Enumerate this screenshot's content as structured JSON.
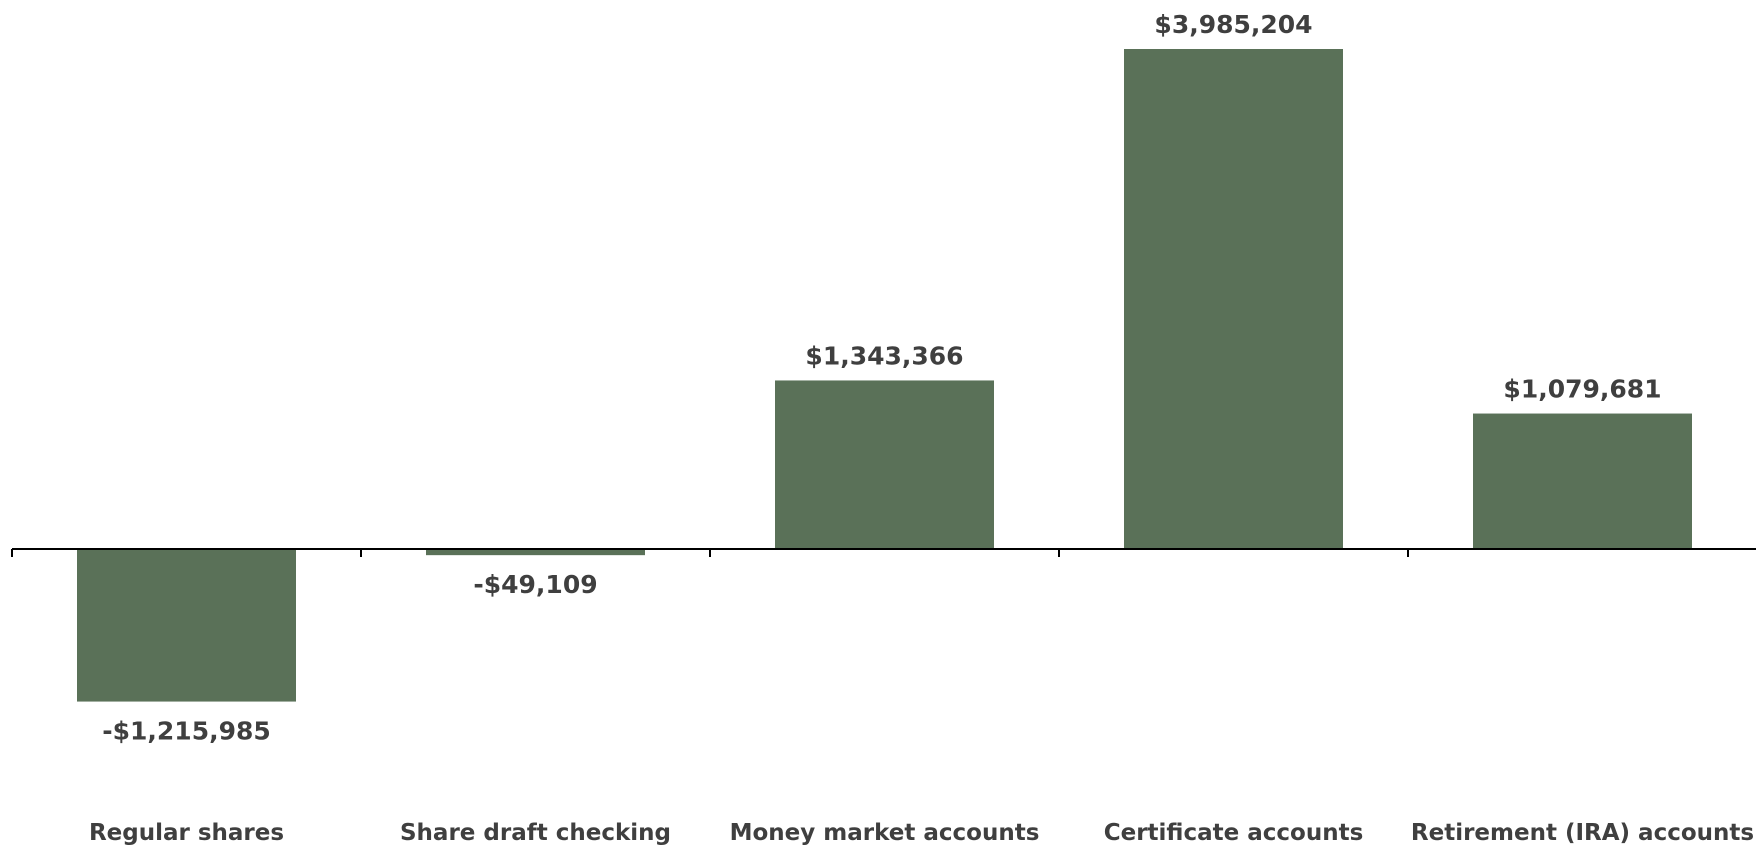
{
  "chart_data": {
    "type": "bar",
    "title": "",
    "xlabel": "",
    "ylabel": "",
    "categories": [
      "Regular shares",
      "Share draft checking",
      "Money market accounts",
      "Certificate accounts",
      "Retirement (IRA) accounts"
    ],
    "values": [
      -1215985,
      -49109,
      1343366,
      3985204,
      1079681
    ],
    "data_labels": [
      "-$1,215,985",
      "-$49,109",
      "$1,343,366",
      "$3,985,204",
      "$1,079,681"
    ],
    "ylim": [
      -1215985,
      3985204
    ],
    "grid": false,
    "legend": "none",
    "colors": {
      "bar": "#5a7158",
      "axis": "#000000",
      "label_text": "#3f3f3f"
    }
  }
}
